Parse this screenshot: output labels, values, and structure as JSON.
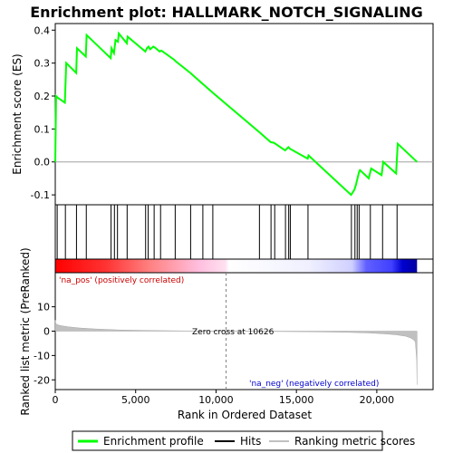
{
  "chart_data": {
    "type": "line",
    "title": "Enrichment plot: HALLMARK_NOTCH_SIGNALING",
    "top_panel": {
      "ylabel": "Enrichment score (ES)",
      "ylim": [
        -0.13,
        0.42
      ],
      "yticks": [
        -0.1,
        0.0,
        0.1,
        0.2,
        0.3,
        0.4
      ],
      "ytick_labels": [
        "-0.1",
        "0.0",
        "0.1",
        "0.2",
        "0.3",
        "0.4"
      ],
      "enrichment_profile": {
        "x": [
          0,
          50,
          150,
          600,
          680,
          1300,
          1350,
          1900,
          1950,
          3450,
          3500,
          3650,
          3750,
          3900,
          3950,
          4450,
          4500,
          5600,
          5700,
          5800,
          5900,
          6100,
          6200,
          6500,
          6600,
          7400,
          7500,
          8400,
          9100,
          9800,
          12700,
          13400,
          13600,
          14300,
          14500,
          14600,
          15700,
          15750,
          18400,
          18600,
          18700,
          18800,
          18900,
          18950,
          19500,
          19650,
          20300,
          20400,
          21200,
          21300,
          22500
        ],
        "y": [
          0,
          0.2,
          0.195,
          0.18,
          0.3,
          0.27,
          0.345,
          0.32,
          0.385,
          0.315,
          0.345,
          0.33,
          0.37,
          0.365,
          0.39,
          0.36,
          0.38,
          0.335,
          0.345,
          0.35,
          0.342,
          0.35,
          0.347,
          0.335,
          0.338,
          0.31,
          0.305,
          0.27,
          0.24,
          0.21,
          0.09,
          0.06,
          0.058,
          0.035,
          0.045,
          0.04,
          0.01,
          0.02,
          -0.1,
          -0.085,
          -0.07,
          -0.05,
          -0.03,
          -0.025,
          -0.05,
          -0.02,
          -0.04,
          0.0,
          -0.035,
          0.055,
          0.0
        ]
      }
    },
    "hits": [
      120,
      630,
      1320,
      1930,
      3470,
      3680,
      3870,
      4470,
      5620,
      5780,
      6150,
      6550,
      7460,
      8420,
      9180,
      9800,
      12700,
      13420,
      13650,
      14320,
      14520,
      14620,
      15720,
      18420,
      18640,
      18780,
      18900,
      19600,
      20360,
      21260
    ],
    "x_range": [
      0,
      23500
    ],
    "bottom_panel": {
      "ylabel": "Ranked list metric (PreRanked)",
      "ylim": [
        -24,
        24
      ],
      "yticks": [
        -20,
        -10,
        0,
        10
      ],
      "ytick_labels": [
        "-20",
        "-10",
        "0",
        "10"
      ],
      "xlabel": "Rank in Ordered Dataset",
      "xticks": [
        0,
        5000,
        10000,
        15000,
        20000
      ],
      "xtick_labels": [
        "0",
        "5,000",
        "10,000",
        "15,000",
        "20,000"
      ],
      "metric_profile": {
        "x": [
          0,
          30,
          100,
          200,
          400,
          800,
          1500,
          2500,
          4000,
          6000,
          8000,
          10626,
          13000,
          16000,
          18000,
          19500,
          20500,
          21200,
          21800,
          22100,
          22300,
          22400,
          22480,
          22500
        ],
        "y": [
          4.5,
          3.2,
          2.8,
          2.5,
          2.2,
          1.8,
          1.3,
          0.9,
          0.5,
          0.25,
          0.1,
          0,
          -0.1,
          -0.25,
          -0.45,
          -0.75,
          -1.1,
          -1.5,
          -2.1,
          -2.8,
          -3.6,
          -4.5,
          -12,
          -22
        ]
      }
    },
    "zero_cross_rank": 10626,
    "n_genes": 22500,
    "labels": {
      "zero_cross": "Zero cross at 10626",
      "pos": "'na_pos' (positively correlated)",
      "neg": "'na_neg' (negatively correlated)"
    },
    "legend": {
      "placement": "bottom",
      "items": [
        {
          "label": "Enrichment profile",
          "color": "#00ff00"
        },
        {
          "label": "Hits",
          "color": "#000000"
        },
        {
          "label": "Ranking metric scores",
          "color": "#c0c0c0"
        }
      ]
    },
    "colors": {
      "profile": "#00ff00",
      "hits": "#000000",
      "metric": "#c0c0c0",
      "pos_label": "#cc0000",
      "neg_label": "#0000cc",
      "zero_line": "#808080"
    }
  }
}
